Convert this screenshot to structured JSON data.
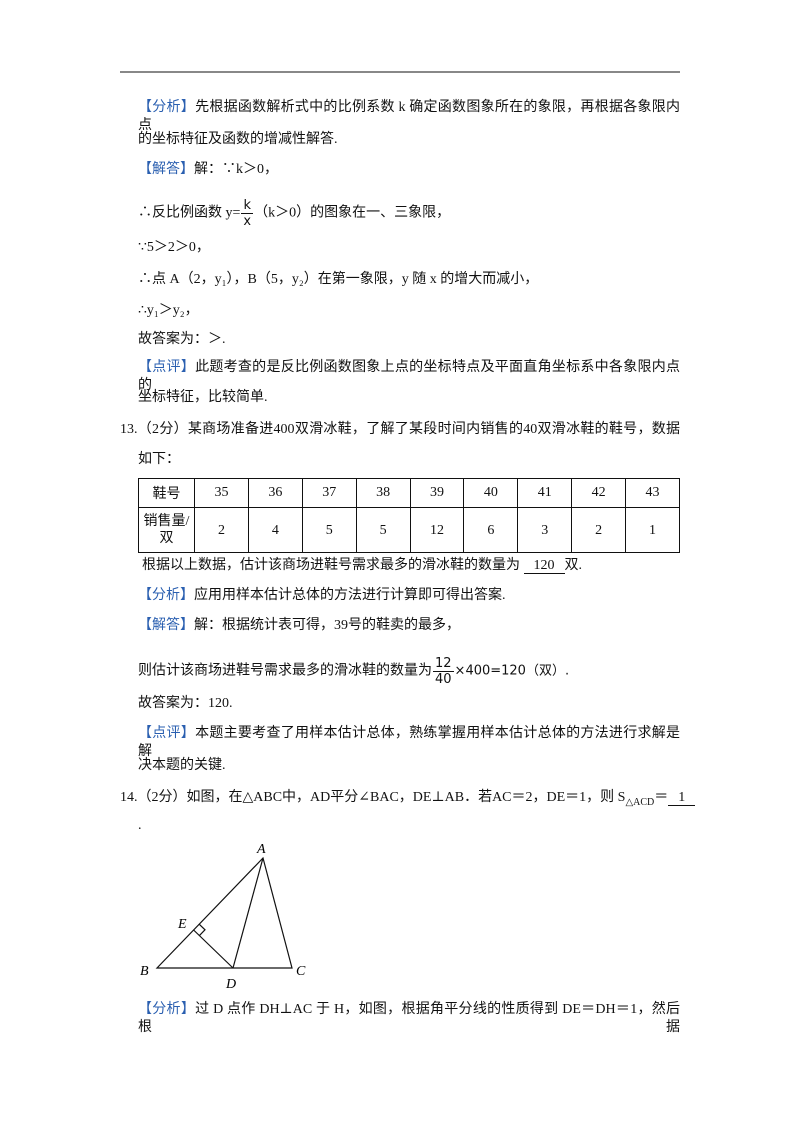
{
  "q12": {
    "analysis": {
      "tag": "【分析】",
      "lines": [
        "先根据函数解析式中的比例系数 k 确定函数图象所在的象限，再根据各象限内点",
        "的坐标特征及函数的增减性解答."
      ]
    },
    "solution": {
      "tag": "【解答】",
      "first": "解：∵k＞0，",
      "line2": {
        "before": "∴反比例函数 y=",
        "numerator": "k",
        "denominator": "x",
        "after": "（k＞0）的图象在一、三象限，"
      },
      "lines": [
        "∵5＞2＞0，",
        "∴点 A（2，y₁），B（5，y₂）在第一象限，y 随 x 的增大而减小，",
        "∴y₁＞y₂，",
        "故答案为：＞."
      ]
    },
    "comment": {
      "tag": "【点评】",
      "lines": [
        "此题考查的是反比例函数图象上点的坐标特点及平面直角坐标系中各象限内点的",
        "坐标特征，比较简单."
      ]
    }
  },
  "q13": {
    "stem": [
      "13.（2分）某商场准备进400双滑冰鞋，了解了某段时间内销售的40双滑冰鞋的鞋号，数据",
      "如下："
    ],
    "table": {
      "rows": [
        [
          "鞋号",
          35,
          36,
          37,
          38,
          39,
          40,
          41,
          42,
          43
        ],
        [
          "销售量/双",
          2,
          4,
          5,
          5,
          12,
          6,
          3,
          2,
          1
        ]
      ]
    },
    "question": {
      "before": "根据以上数据，估计该商场进鞋号需求最多的滑冰鞋的数量为",
      "answer": "120",
      "after": "双."
    },
    "analysis": {
      "tag": "【分析】",
      "text": "应用用样本估计总体的方法进行计算即可得出答案."
    },
    "solution": {
      "tag": "【解答】",
      "first": "解：根据统计表可得，39号的鞋卖的最多，",
      "line2": {
        "before": "则估计该商场进鞋号需求最多的滑冰鞋的数量为",
        "numerator": "12",
        "denominator": "40",
        "after": "×400=120（双）."
      },
      "last": "故答案为：120."
    },
    "comment": {
      "tag": "【点评】",
      "lines": [
        "本题主要考查了用样本估计总体，熟练掌握用样本估计总体的方法进行求解是解",
        "决本题的关键."
      ]
    }
  },
  "q14": {
    "stem": {
      "before": "14.（2分）如图，在△ABC中，AD平分∠BAC，DE⊥AB．若AC＝2，DE＝1，则 S",
      "subscript": "△ACD",
      "equals": "＝",
      "answer": "1",
      "end": "."
    },
    "figure": {
      "labels": {
        "A": "A",
        "B": "B",
        "C": "C",
        "D": "D",
        "E": "E"
      }
    },
    "analysis": {
      "tag": "【分析】",
      "text": "过 D 点作 DH⊥AC 于 H，如图，根据角平分线的性质得到 DE＝DH＝1，然后根据"
    }
  }
}
